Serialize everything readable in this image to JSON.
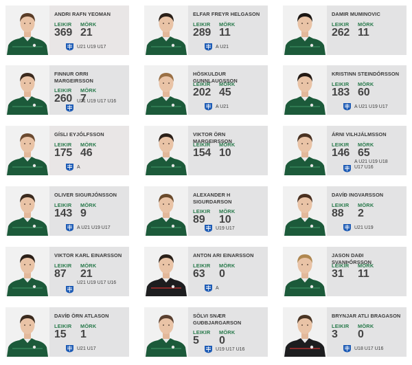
{
  "labels": {
    "games": "LEIKIR",
    "goals": "MÖRK"
  },
  "colors": {
    "card_bg": "#e3e3e4",
    "label_green": "#27794a",
    "kit_green": "#1c5a3a",
    "kit_black": "#1d1d1f",
    "logo_blue": "#1d5bb5"
  },
  "players": [
    {
      "name": "ANDRI RAFN YEOMAN",
      "games": "369",
      "goals": "21",
      "teams": "U21 U19 U17",
      "kit": "green",
      "hair": "#5a3d28",
      "hl": true
    },
    {
      "name": "ELFAR FREYR HELGASON",
      "games": "289",
      "goals": "11",
      "teams": "A U21",
      "kit": "green",
      "hair": "#2a2019",
      "hl": false
    },
    {
      "name": "DAMIR MUMINOVIC",
      "games": "262",
      "goals": "11",
      "teams": "",
      "kit": "green",
      "hair": "#1c1714",
      "hl": false
    },
    {
      "name": "FINNUR ORRI MARGEIRSSON",
      "games": "260",
      "goals": "7",
      "teams": "U21 U19 U17 U16",
      "kit": "green",
      "hair": "#3b2a1e",
      "hl": false
    },
    {
      "name": "HÖSKULDUR GUNNLAUGSSON",
      "games": "202",
      "goals": "45",
      "teams": "A U21",
      "kit": "green",
      "hair": "#9a7045",
      "hl": false
    },
    {
      "name": "KRISTINN STEINDÓRSSON",
      "games": "183",
      "goals": "60",
      "teams": "A U21 U19 U17",
      "kit": "green",
      "hair": "#241a14",
      "hl": false
    },
    {
      "name": "GÍSLI EYJÓLFSSON",
      "games": "175",
      "goals": "46",
      "teams": "A",
      "kit": "green",
      "hair": "#6b4a30",
      "hl": true
    },
    {
      "name": "VIKTOR ÖRN MARGEIRSSON",
      "games": "154",
      "goals": "10",
      "teams": "",
      "kit": "green",
      "hair": "#2b2019",
      "hl": false
    },
    {
      "name": "ÁRNI VILHJÁLMSSON",
      "games": "146",
      "goals": "65",
      "teams": "A U21 U19 U18 U17 U16",
      "kit": "green",
      "hair": "#4a3222",
      "hl": false
    },
    {
      "name": "OLIVER SIGURJÓNSSON",
      "games": "143",
      "goals": "9",
      "teams": "A U21 U19 U17",
      "kit": "green",
      "hair": "#3a2a1e",
      "hl": false
    },
    {
      "name": "ALEXANDER H SIGURDARSON",
      "games": "89",
      "goals": "10",
      "teams": "U19 U17",
      "kit": "green",
      "hair": "#6a4a2c",
      "hl": false
    },
    {
      "name": "DAVÍÐ INGVARSSON",
      "games": "88",
      "goals": "2",
      "teams": "U21 U19",
      "kit": "green",
      "hair": "#4a3020",
      "hl": false
    },
    {
      "name": "VIKTOR KARL EINARSSON",
      "games": "87",
      "goals": "21",
      "teams": "U21 U19 U17 U16",
      "kit": "green",
      "hair": "#2a1f18",
      "hl": false
    },
    {
      "name": "ANTON ARI EINARSSON",
      "games": "63",
      "goals": "0",
      "teams": "A",
      "kit": "black",
      "hair": "#2a2019",
      "hl": false
    },
    {
      "name": "JASON DAÐI SVANÞÓRSSON",
      "games": "31",
      "goals": "11",
      "teams": "",
      "kit": "green",
      "hair": "#b08850",
      "hl": false
    },
    {
      "name": "DAVÍÐ ÖRN ATLASON",
      "games": "15",
      "goals": "1",
      "teams": "U21 U17",
      "kit": "green",
      "hair": "#3a2a1e",
      "hl": false
    },
    {
      "name": "SÖLVI SNÆR GUÐBJARGARSON",
      "games": "5",
      "goals": "0",
      "teams": "U19 U17 U16",
      "kit": "green",
      "hair": "#5a4030",
      "hl": false
    },
    {
      "name": "BRYNJAR ATLI BRAGASON",
      "games": "3",
      "goals": "0",
      "teams": "U18 U17 U16",
      "kit": "black",
      "hair": "#4a3524",
      "hl": false
    }
  ]
}
